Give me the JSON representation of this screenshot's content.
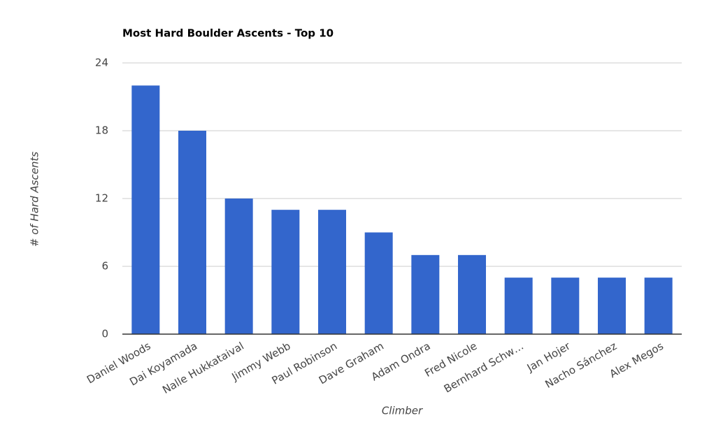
{
  "chart_data": {
    "type": "bar",
    "title": "Most Hard Boulder Ascents - Top 10",
    "x_label": "Climber",
    "y_label": "# of Hard Ascents",
    "categories": [
      "Daniel Woods",
      "Dai Koyamada",
      "Nalle Hukkataival",
      "Jimmy Webb",
      "Paul Robinson",
      "Dave Graham",
      "Adam Ondra",
      "Fred Nicole",
      "Bernhard Schw…",
      "Jan Hojer",
      "Nacho Sánchez",
      "Alex Megos"
    ],
    "values": [
      22,
      18,
      12,
      11,
      11,
      9,
      7,
      7,
      5,
      5,
      5,
      5
    ],
    "color": "#3366cc",
    "ylim": [
      0,
      24
    ],
    "yticks": [
      0,
      6,
      12,
      18,
      24
    ],
    "grid": true
  }
}
